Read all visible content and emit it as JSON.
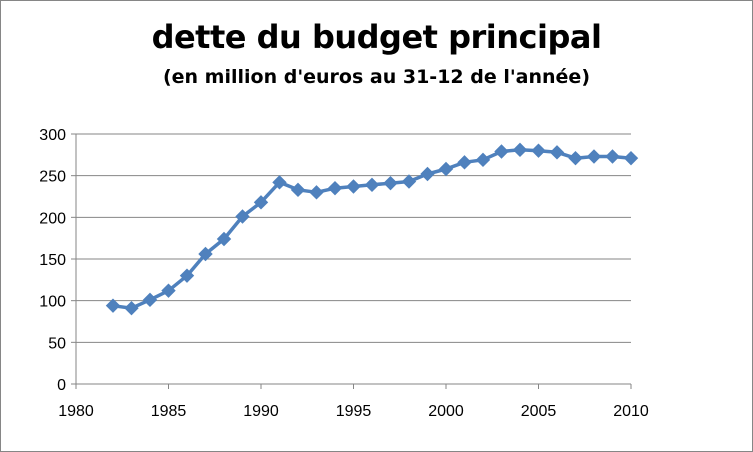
{
  "chart_data": {
    "type": "line",
    "title": "dette du budget principal",
    "subtitle": "(en million d'euros au 31-12 de l'année)",
    "xlabel": "",
    "ylabel": "",
    "xlim": [
      1980,
      2010
    ],
    "ylim": [
      0,
      300
    ],
    "x_ticks": [
      1980,
      1985,
      1990,
      1995,
      2000,
      2005,
      2010
    ],
    "y_ticks": [
      0,
      50,
      100,
      150,
      200,
      250,
      300
    ],
    "grid": true,
    "legend": "none",
    "series": [
      {
        "color": "#4F81BD",
        "marker": "diamond",
        "x": [
          1982,
          1983,
          1984,
          1985,
          1986,
          1987,
          1988,
          1989,
          1990,
          1991,
          1992,
          1993,
          1994,
          1995,
          1996,
          1997,
          1998,
          1999,
          2000,
          2001,
          2002,
          2003,
          2004,
          2005,
          2006,
          2007,
          2008,
          2009,
          2010
        ],
        "values": [
          94,
          91,
          101,
          112,
          130,
          156,
          174,
          201,
          218,
          242,
          233,
          230,
          235,
          237,
          239,
          241,
          243,
          252,
          258,
          266,
          269,
          279,
          281,
          280,
          278,
          271,
          273,
          273,
          271
        ]
      }
    ]
  }
}
